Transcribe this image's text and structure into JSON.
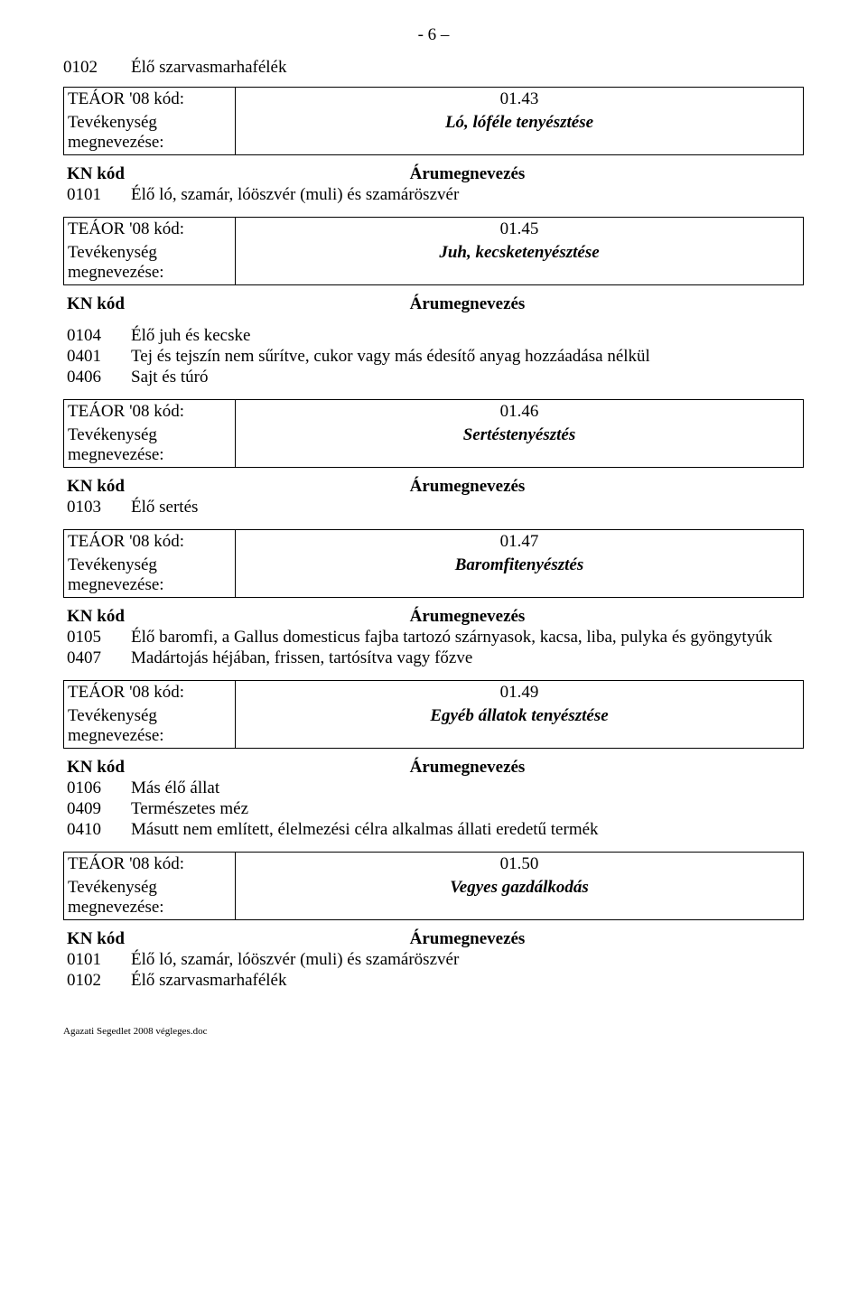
{
  "pageNumber": "- 6 –",
  "labels": {
    "teaorKod": "TEÁOR '08 kód:",
    "tevekenyseg": "Tevékenység",
    "megnevezese": "megnevezése:",
    "knKod": "KN kód",
    "arumeg": "Árumegnevezés"
  },
  "topLine": {
    "code": "0102",
    "text": "Élő szarvasmarhafélék"
  },
  "sections": [
    {
      "teaorCode": "01.43",
      "activity": "Ló, lóféle tenyésztése",
      "rows": [
        {
          "code": "0101",
          "text": "Élő ló, szamár, lóöszvér (muli) és szamáröszvér"
        }
      ]
    },
    {
      "teaorCode": "01.45",
      "activity": "Juh, kecsketenyésztése",
      "headerGapBefore": true,
      "rows": [
        {
          "code": "0104",
          "text": "Élő juh és kecske"
        },
        {
          "code": "0401",
          "text": "Tej és tejszín nem sűrítve, cukor vagy más édesítő anyag hozzáadása nélkül"
        },
        {
          "code": "0406",
          "text": "Sajt és túró"
        }
      ]
    },
    {
      "teaorCode": "01.46",
      "activity": "Sertéstenyésztés",
      "rows": [
        {
          "code": "0103",
          "text": "Élő sertés"
        }
      ]
    },
    {
      "teaorCode": "01.47",
      "activity": "Baromfitenyésztés",
      "rows": [
        {
          "code": "0105",
          "text": "Élő baromfi, a Gallus domesticus fajba tartozó szárnyasok, kacsa, liba, pulyka és gyöngytyúk"
        },
        {
          "code": "0407",
          "text": "Madártojás héjában, frissen, tartósítva vagy főzve"
        }
      ]
    },
    {
      "teaorCode": "01.49",
      "activity": "Egyéb állatok tenyésztése",
      "rows": [
        {
          "code": "0106",
          "text": "Más élő állat"
        },
        {
          "code": "0409",
          "text": "Természetes méz"
        },
        {
          "code": "0410",
          "text": "Másutt nem említett, élelmezési célra alkalmas állati eredetű termék"
        }
      ]
    },
    {
      "teaorCode": "01.50",
      "activity": "Vegyes gazdálkodás",
      "rows": [
        {
          "code": "0101",
          "text": "Élő ló, szamár, lóöszvér (muli) és szamáröszvér"
        },
        {
          "code": "0102",
          "text": "Élő szarvasmarhafélék"
        }
      ]
    }
  ],
  "footer": "Agazati Segedlet 2008 végleges.doc"
}
